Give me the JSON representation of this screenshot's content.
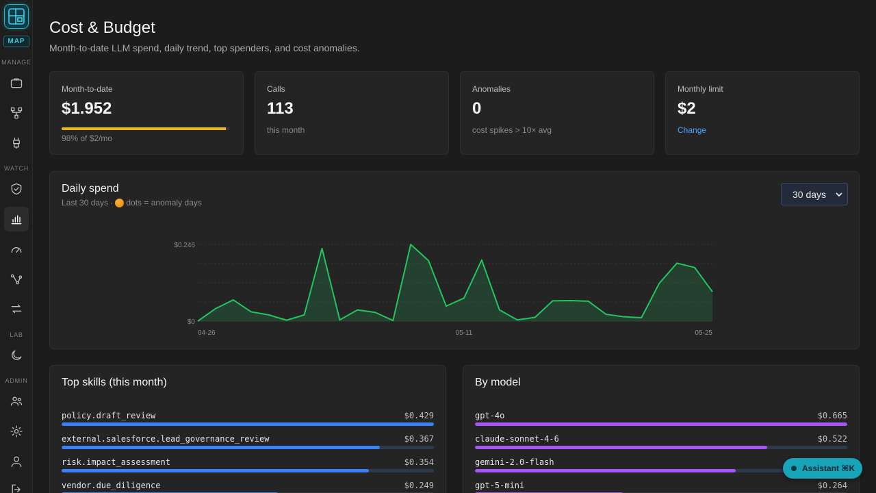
{
  "sidebar": {
    "badge": "MAP",
    "sections": {
      "manage": "MANAGE",
      "watch": "WATCH",
      "lab": "LAB",
      "admin": "ADMIN"
    }
  },
  "page": {
    "title": "Cost & Budget",
    "subtitle": "Month-to-date LLM spend, daily trend, top spenders, and cost anomalies."
  },
  "kpis": {
    "mtd": {
      "label": "Month-to-date",
      "value": "$1.952",
      "progress": 0.98,
      "note": "98% of $2/mo"
    },
    "calls": {
      "label": "Calls",
      "value": "113",
      "note": "this month"
    },
    "anomalies": {
      "label": "Anomalies",
      "value": "0",
      "note": "cost spikes > 10× avg"
    },
    "limit": {
      "label": "Monthly limit",
      "value": "$2",
      "link": "Change"
    }
  },
  "daily": {
    "title": "Daily spend",
    "subtitle_pre": "Last 30 days ·",
    "subtitle_post": "dots = anomaly days",
    "range_select": "30 days"
  },
  "chart_data": {
    "type": "area",
    "ylim": [
      0,
      0.246
    ],
    "y_tick_labels": [
      "$0",
      "$0.246"
    ],
    "x_tick_labels": [
      "04-26",
      "05-11",
      "05-25"
    ],
    "x": [
      "04-26",
      "04-27",
      "04-28",
      "04-29",
      "04-30",
      "05-01",
      "05-02",
      "05-03",
      "05-04",
      "05-05",
      "05-06",
      "05-07",
      "05-08",
      "05-09",
      "05-10",
      "05-11",
      "05-12",
      "05-13",
      "05-14",
      "05-15",
      "05-16",
      "05-17",
      "05-18",
      "05-19",
      "05-20",
      "05-21",
      "05-22",
      "05-23",
      "05-24",
      "05-25"
    ],
    "values": [
      0.0,
      0.04,
      0.068,
      0.03,
      0.02,
      0.003,
      0.02,
      0.233,
      0.004,
      0.036,
      0.028,
      0.002,
      0.246,
      0.194,
      0.048,
      0.074,
      0.196,
      0.036,
      0.004,
      0.012,
      0.065,
      0.066,
      0.064,
      0.022,
      0.014,
      0.011,
      0.121,
      0.186,
      0.172,
      0.094
    ],
    "color": "#22c55e"
  },
  "top_skills": {
    "title": "Top skills (this month)",
    "color": "#3b82f6",
    "items": [
      {
        "name": "policy.draft_review",
        "value": "$0.429",
        "pct": 1.0
      },
      {
        "name": "external.salesforce.lead_governance_review",
        "value": "$0.367",
        "pct": 0.855
      },
      {
        "name": "risk.impact_assessment",
        "value": "$0.354",
        "pct": 0.825
      },
      {
        "name": "vendor.due_diligence",
        "value": "$0.249",
        "pct": 0.58
      }
    ]
  },
  "by_model": {
    "title": "By model",
    "color": "#a855f7",
    "items": [
      {
        "name": "gpt-4o",
        "value": "$0.665",
        "pct": 1.0
      },
      {
        "name": "claude-sonnet-4-6",
        "value": "$0.522",
        "pct": 0.785
      },
      {
        "name": "gemini-2.0-flash",
        "value": "",
        "pct": 0.7
      },
      {
        "name": "gpt-5-mini",
        "value": "$0.264",
        "pct": 0.397
      }
    ]
  },
  "assistant": {
    "label": "Assistant ⌘K"
  }
}
